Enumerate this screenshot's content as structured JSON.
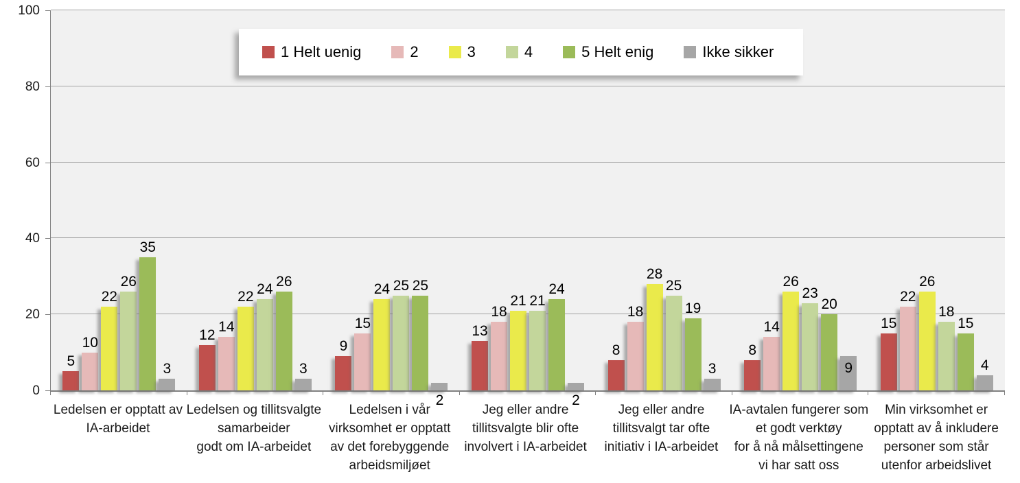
{
  "chart_data": {
    "type": "bar",
    "title": "",
    "xlabel": "",
    "ylabel": "",
    "ylim": [
      0,
      100
    ],
    "yticks": [
      0,
      20,
      40,
      60,
      80,
      100
    ],
    "grid": true,
    "legend_position": "top-center",
    "plot_bg_color": "#F1F1F1",
    "gridline_color": "#A3A3A3",
    "axis_color": "#808080",
    "categories": [
      [
        "Ledelsen er opptatt av",
        "IA-arbeidet"
      ],
      [
        "Ledelsen og tillitsvalgte",
        "samarbeider",
        "godt om IA-arbeidet"
      ],
      [
        "Ledelsen i vår",
        "virksomhet er opptatt",
        "av det forebyggende",
        "arbeidsmiljøet"
      ],
      [
        "Jeg eller andre",
        "tillitsvalgte blir ofte",
        "involvert i IA-arbeidet"
      ],
      [
        "Jeg eller andre",
        "tillitsvalgt tar ofte",
        "initiativ i IA-arbeidet"
      ],
      [
        "IA-avtalen fungerer som",
        "et godt verktøy",
        "for å nå målsettingene",
        "vi har satt oss"
      ],
      [
        "Min virksomhet er",
        "opptatt av å inkludere",
        "personer som står",
        "utenfor arbeidslivet"
      ]
    ],
    "series": [
      {
        "name": "1 Helt uenig",
        "color": "#C0504D",
        "values": [
          5,
          12,
          9,
          13,
          8,
          8,
          15
        ]
      },
      {
        "name": "2",
        "color": "#E6B9B8",
        "values": [
          10,
          14,
          15,
          18,
          18,
          14,
          22
        ]
      },
      {
        "name": "3",
        "color": "#EAEA4B",
        "values": [
          22,
          22,
          24,
          21,
          28,
          26,
          26
        ]
      },
      {
        "name": "4",
        "color": "#C3D69B",
        "values": [
          26,
          24,
          25,
          21,
          25,
          23,
          18
        ]
      },
      {
        "name": "5 Helt enig",
        "color": "#9BBB59",
        "values": [
          35,
          26,
          25,
          24,
          19,
          20,
          15
        ]
      },
      {
        "name": "Ikke sikker",
        "color": "#A6A6A6",
        "values": [
          3,
          3,
          2,
          2,
          3,
          9,
          4
        ],
        "label_overrides": {
          "2": "below",
          "3": "below",
          "5": "inside"
        }
      }
    ]
  }
}
